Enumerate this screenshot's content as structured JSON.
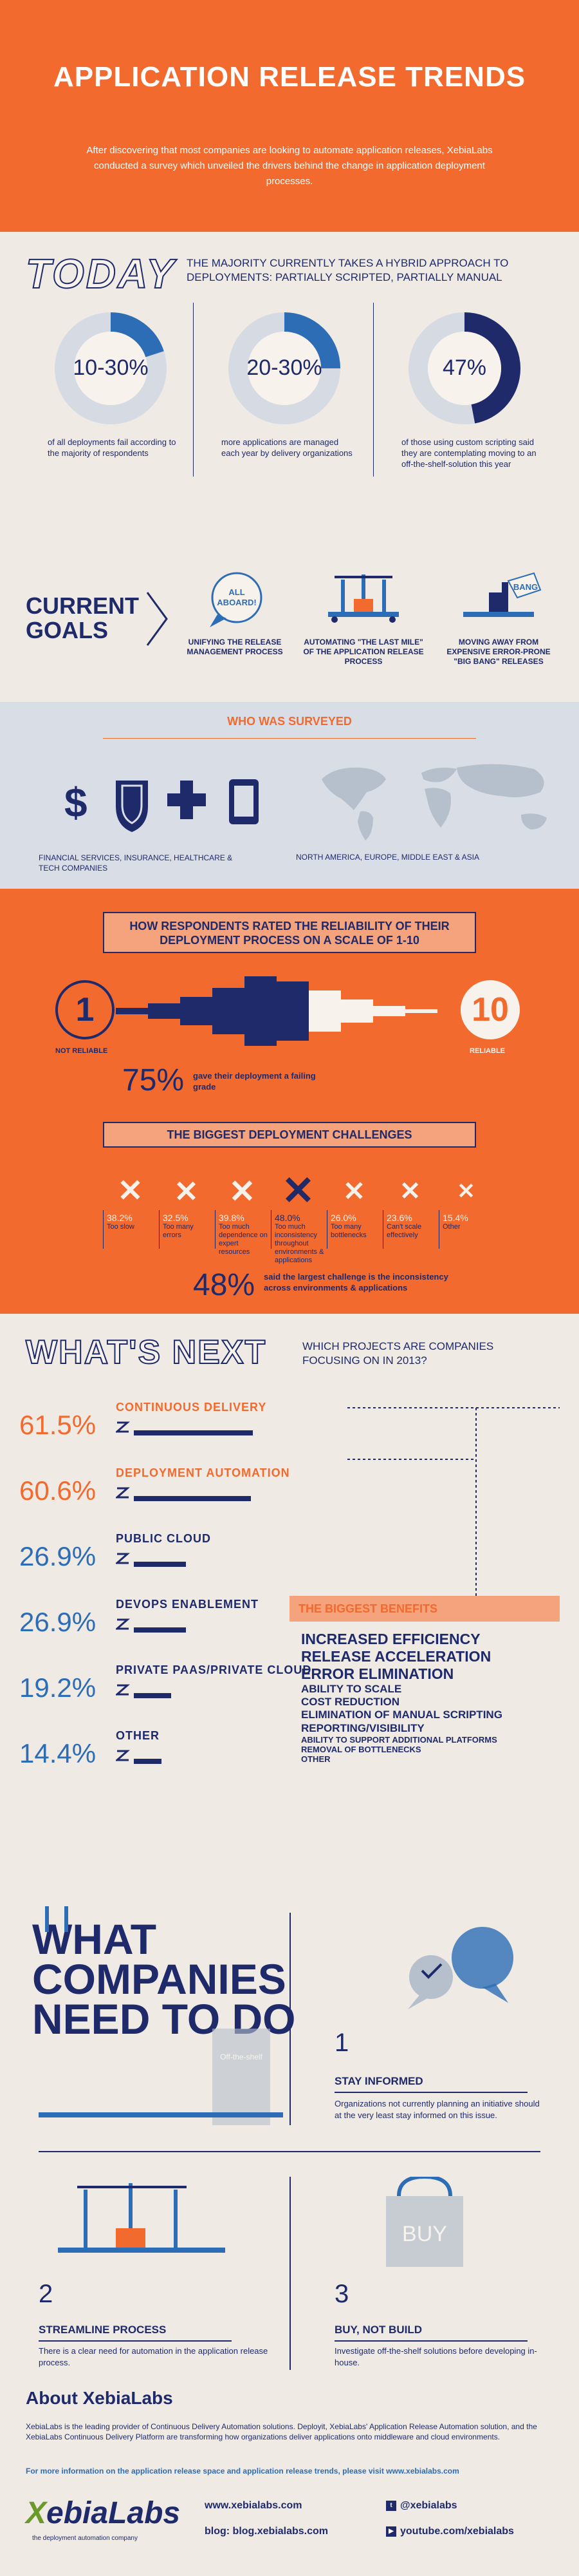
{
  "header": {
    "title": "APPLICATION RELEASE TRENDS",
    "intro": "After discovering that most companies are looking to automate application releases, XebiaLabs conducted a survey which unveiled the drivers behind the change in application deployment processes."
  },
  "today": {
    "heading": "TODAY",
    "subtitle": "THE MAJORITY CURRENTLY TAKES A HYBRID APPROACH TO DEPLOYMENTS: PARTIALLY SCRIPTED, PARTIALLY MANUAL",
    "stats": [
      {
        "value": "10-30%",
        "desc": "of all deployments fail according to the majority of respondents",
        "fill": 0.2
      },
      {
        "value": "20-30%",
        "desc": "more applications are managed each year by delivery organizations",
        "fill": 0.25
      },
      {
        "value": "47%",
        "desc": "of those using custom scripting said they are contemplating moving to an off-the-shelf-solution this year",
        "fill": 0.47
      }
    ]
  },
  "goals": {
    "heading_line1": "CURRENT",
    "heading_line2": "GOALS",
    "items": [
      {
        "label": "UNIFYING THE RELEASE MANAGEMENT PROCESS",
        "icon_text": "ALL ABOARD!"
      },
      {
        "label": "AUTOMATING \"THE LAST MILE\" OF THE APPLICATION RELEASE PROCESS",
        "icon_text": ""
      },
      {
        "label": "MOVING AWAY FROM EXPENSIVE ERROR-PRONE \"BIG BANG\" RELEASES",
        "icon_text": "BANG"
      }
    ]
  },
  "surveyed": {
    "title": "WHO WAS SURVEYED",
    "industries": "FINANCIAL SERVICES, INSURANCE, HEALTHCARE & TECH COMPANIES",
    "regions": "NORTH AMERICA, EUROPE, MIDDLE EAST & ASIA"
  },
  "reliability": {
    "title": "HOW RESPONDENTS RATED THE RELIABILITY OF THEIR DEPLOYMENT PROCESS ON A SCALE OF 1-10",
    "low": "1",
    "low_label": "NOT RELIABLE",
    "high": "10",
    "high_label": "RELIABLE",
    "failing_pct": "75%",
    "failing_desc": "gave their deployment a failing grade"
  },
  "challenges": {
    "title": "THE BIGGEST DEPLOYMENT CHALLENGES",
    "items": [
      {
        "pct": "38.2%",
        "desc": "Too slow",
        "size": 34
      },
      {
        "pct": "32.5%",
        "desc": "Too many errors",
        "size": 32
      },
      {
        "pct": "39.8%",
        "desc": "Too much dependence on expert resources",
        "size": 36
      },
      {
        "pct": "48.0%",
        "desc": "Too much inconsistency throughout environments & applications",
        "size": 48
      },
      {
        "pct": "26.0%",
        "desc": "Too many bottlenecks",
        "size": 28
      },
      {
        "pct": "23.6%",
        "desc": "Can't scale effectively",
        "size": 26
      },
      {
        "pct": "15.4%",
        "desc": "Other",
        "size": 20
      }
    ],
    "summary_pct": "48%",
    "summary_desc": "said the largest challenge is the inconsistency across environments & applications"
  },
  "next": {
    "heading": "WHAT'S NEXT",
    "subtitle": "WHICH PROJECTS ARE COMPANIES FOCUSING ON IN 2013?",
    "projects": [
      {
        "value": "61.5%",
        "name": "CONTINUOUS DELIVERY",
        "pct": 61.5,
        "color": "#f26a2e"
      },
      {
        "value": "60.6%",
        "name": "DEPLOYMENT AUTOMATION",
        "pct": 60.6,
        "color": "#f26a2e"
      },
      {
        "value": "26.9%",
        "name": "PUBLIC CLOUD",
        "pct": 26.9,
        "color": "#2d6db5"
      },
      {
        "value": "26.9%",
        "name": "DEVOPS ENABLEMENT",
        "pct": 26.9,
        "color": "#2d6db5"
      },
      {
        "value": "19.2%",
        "name": "PRIVATE PAAS/PRIVATE CLOUD",
        "pct": 19.2,
        "color": "#2d6db5"
      },
      {
        "value": "14.4%",
        "name": "OTHER",
        "pct": 14.4,
        "color": "#2d6db5"
      }
    ],
    "benefits_title": "THE BIGGEST BENEFITS",
    "benefits": [
      {
        "text": "INCREASED EFFICIENCY",
        "size": 23
      },
      {
        "text": "RELEASE ACCELERATION",
        "size": 23
      },
      {
        "text": "ERROR ELIMINATION",
        "size": 23
      },
      {
        "text": "ABILITY TO SCALE",
        "size": 17
      },
      {
        "text": "COST REDUCTION",
        "size": 17
      },
      {
        "text": "ELIMINATION OF MANUAL SCRIPTING",
        "size": 17
      },
      {
        "text": "REPORTING/VISIBILITY",
        "size": 17
      },
      {
        "text": "ABILITY TO SUPPORT ADDITIONAL PLATFORMS",
        "size": 13
      },
      {
        "text": "REMOVAL OF BOTTLENECKS",
        "size": 13
      },
      {
        "text": "OTHER",
        "size": 13
      }
    ]
  },
  "todo": {
    "heading": [
      "WHAT",
      "COMPANIES",
      "NEED TO DO"
    ],
    "oven_label": "Off-the-shelf",
    "steps": [
      {
        "num": "1",
        "title": "STAY INFORMED",
        "desc": "Organizations not currently planning an initiative should at the very least stay informed on this issue."
      },
      {
        "num": "2",
        "title": "STREAMLINE PROCESS",
        "desc": "There is a clear need for automation in the application release process."
      },
      {
        "num": "3",
        "title": "BUY, NOT BUILD",
        "desc": "Investigate off-the-shelf solutions before developing in-house.",
        "icon_text": "BUY"
      }
    ]
  },
  "about": {
    "title": "About XebiaLabs",
    "desc": "XebiaLabs is the leading provider of Continuous Delivery Automation solutions. Deployit, XebiaLabs' Application Release Automation solution, and the XebiaLabs Continuous Delivery Platform are transforming how organizations deliver applications onto middleware and cloud environments.",
    "more": "For more information on the application release space and application release trends, please visit www.xebialabs.com",
    "logo_x": "X",
    "logo_rest": "ebiaLabs",
    "tagline": "the deployment automation company",
    "links": {
      "web": "www.xebialabs.com",
      "blog": "blog: blog.xebialabs.com",
      "twitter": "@xebialabs",
      "youtube": "youtube.com/xebialabs"
    },
    "icon_twitter": "t",
    "icon_youtube": "▶"
  },
  "colors": {
    "orange": "#f26a2e",
    "navy": "#1f2a6b",
    "blue": "#2d6db5",
    "bg": "#efeae4"
  }
}
